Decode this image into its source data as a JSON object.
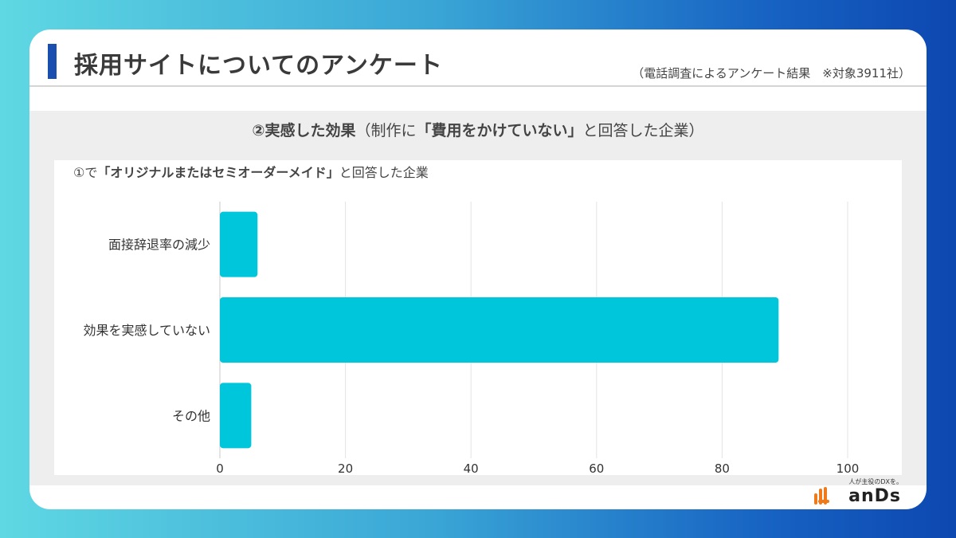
{
  "header": {
    "title": "採用サイトについてのアンケート",
    "note": "（電話調査によるアンケート結果　※対象3911社）"
  },
  "panel": {
    "heading_bold_1": "②実感した効果",
    "heading_normal_1": "（制作に",
    "heading_bold_2": "「費用をかけていない」",
    "heading_normal_2": "と回答した企業）",
    "caption_normal_1": "①で",
    "caption_bold": "「オリジナルまたはセミオーダーメイド」",
    "caption_normal_2": "と回答した企業"
  },
  "chart_data": {
    "type": "bar",
    "orientation": "horizontal",
    "categories": [
      "面接辞退率の減少",
      "効果を実感していない",
      "その他"
    ],
    "values": [
      6,
      89,
      5
    ],
    "xlim": [
      0,
      100
    ],
    "xticks": [
      "0",
      "20",
      "40",
      "60",
      "80",
      "100"
    ],
    "grid": true,
    "bar_color": "#00c6db"
  },
  "logo": {
    "tagline": "人が主役のDXを。",
    "text": "anDs",
    "color": "#f07a1a"
  }
}
